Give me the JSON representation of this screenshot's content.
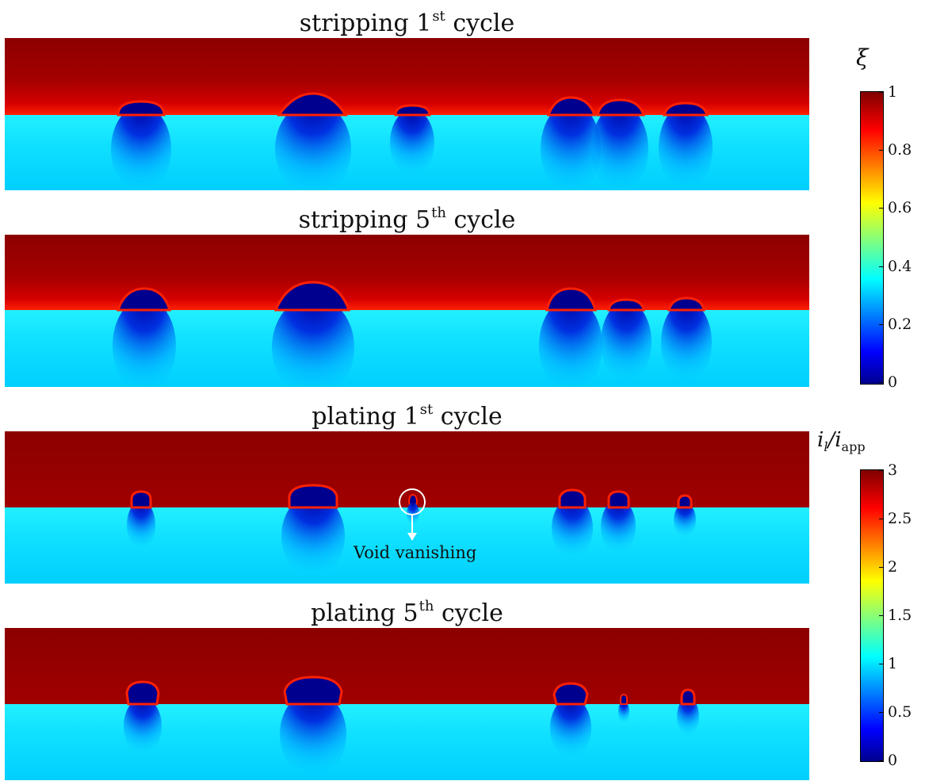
{
  "panels": [
    {
      "label": "stripping 1",
      "sup": "st",
      "suffix": " cycle"
    },
    {
      "label": "stripping 5",
      "sup": "th",
      "suffix": " cycle"
    },
    {
      "label": "plating 1",
      "sup": "st",
      "suffix": " cycle"
    },
    {
      "label": "plating 5",
      "sup": "th",
      "suffix": " cycle"
    }
  ],
  "colorbars": {
    "xi": {
      "symbol": "ξ",
      "ticks": [
        "1",
        "0.8",
        "0.6",
        "0.4",
        "0.2",
        "0"
      ]
    },
    "current": {
      "symbol": "i",
      "sub_l": "l",
      "sep": "/",
      "symbol2": "i",
      "sub_app": "app",
      "ticks": [
        "3",
        "2.5",
        "2",
        "1.5",
        "1",
        "0.5",
        "0"
      ]
    }
  },
  "annotation": {
    "text": "Void vanishing"
  },
  "colors": {
    "electrode": "#c00000",
    "electrolyte": "#00d0ff",
    "void": "#00008f",
    "interface": "#ff2000"
  }
}
